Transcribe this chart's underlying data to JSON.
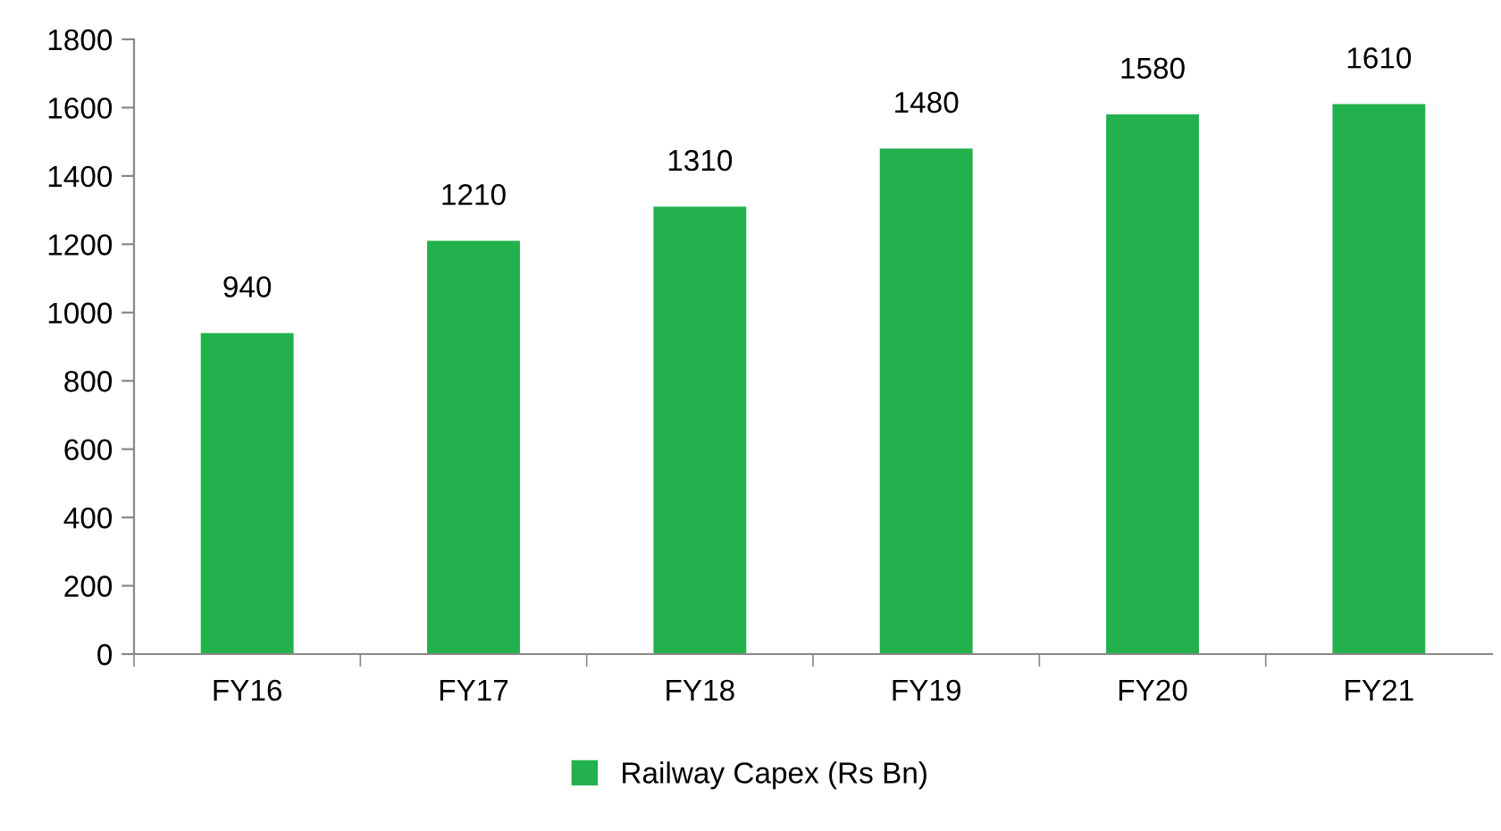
{
  "chart_data": {
    "type": "bar",
    "categories": [
      "FY16",
      "FY17",
      "FY18",
      "FY19",
      "FY20",
      "FY21"
    ],
    "series": [
      {
        "name": "Railway Capex (Rs Bn)",
        "color": "#22b14c",
        "values": [
          940,
          1210,
          1310,
          1480,
          1580,
          1610
        ]
      }
    ],
    "ylim": [
      0,
      1800
    ],
    "yticks": [
      0,
      200,
      400,
      600,
      800,
      1000,
      1200,
      1400,
      1600,
      1800
    ],
    "data_labels": true,
    "legend": "bottom",
    "grid": false
  }
}
